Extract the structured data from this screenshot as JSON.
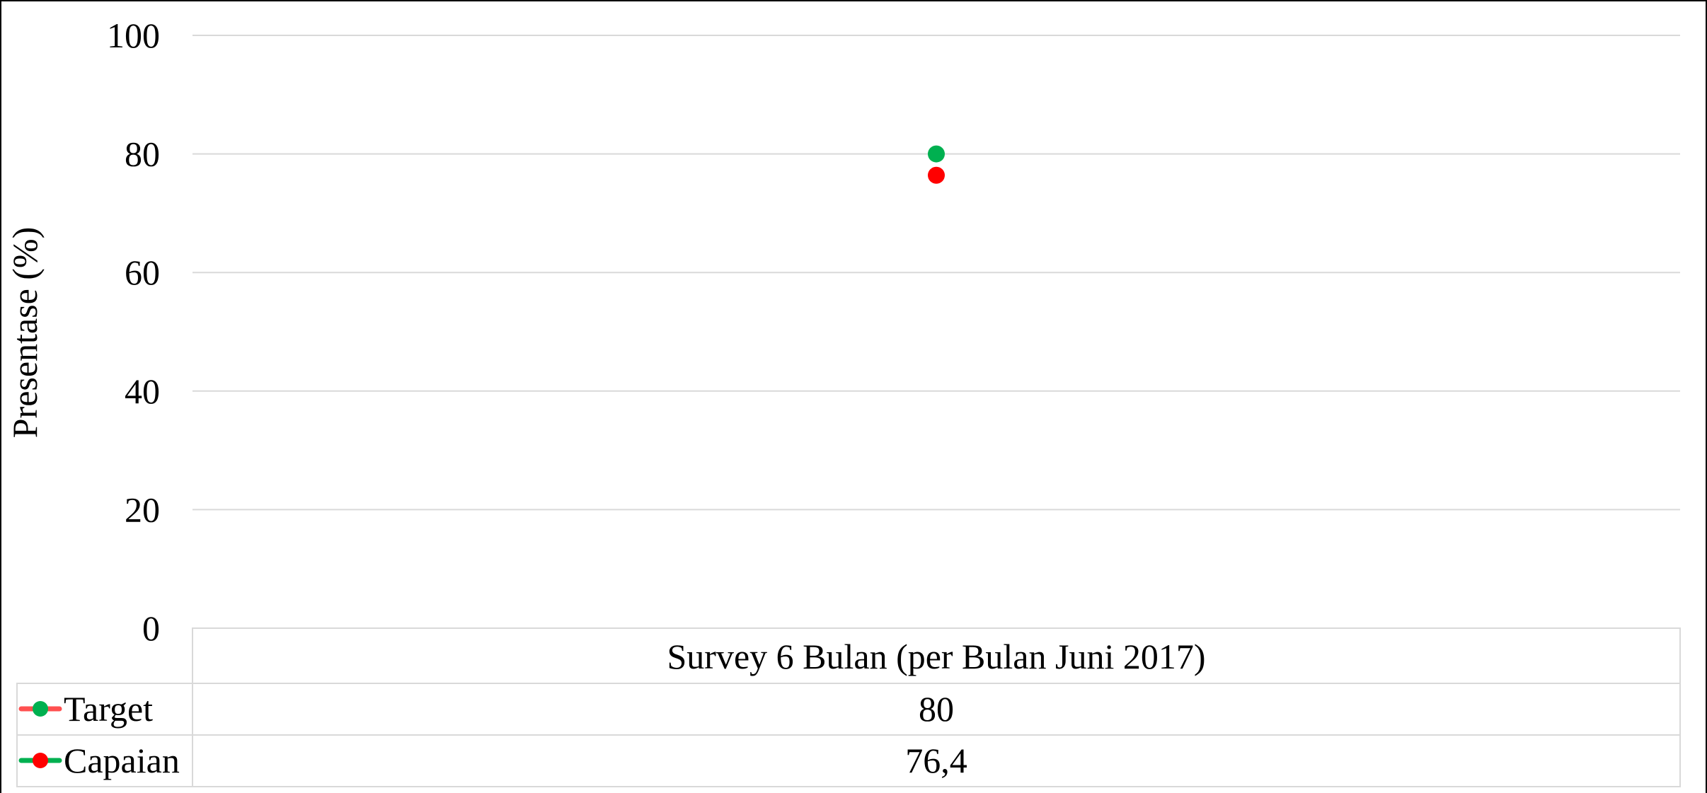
{
  "chart_data": {
    "type": "line",
    "ylabel": "Presentase (%)",
    "ylim": [
      0,
      100
    ],
    "yticks": [
      "0",
      "20",
      "40",
      "60",
      "80",
      "100"
    ],
    "categories": [
      "Survey 6 Bulan (per Bulan Juni 2017)"
    ],
    "grid": true,
    "legend": "data-table",
    "series": [
      {
        "name": "Target",
        "values": [
          80
        ],
        "table_value": "80",
        "marker_color": "#00b050",
        "legend_line_color": "#ff5050"
      },
      {
        "name": "Capaian",
        "values": [
          76.4
        ],
        "table_value": "76,4",
        "marker_color": "#ff0000",
        "legend_line_color": "#00b050"
      }
    ]
  }
}
